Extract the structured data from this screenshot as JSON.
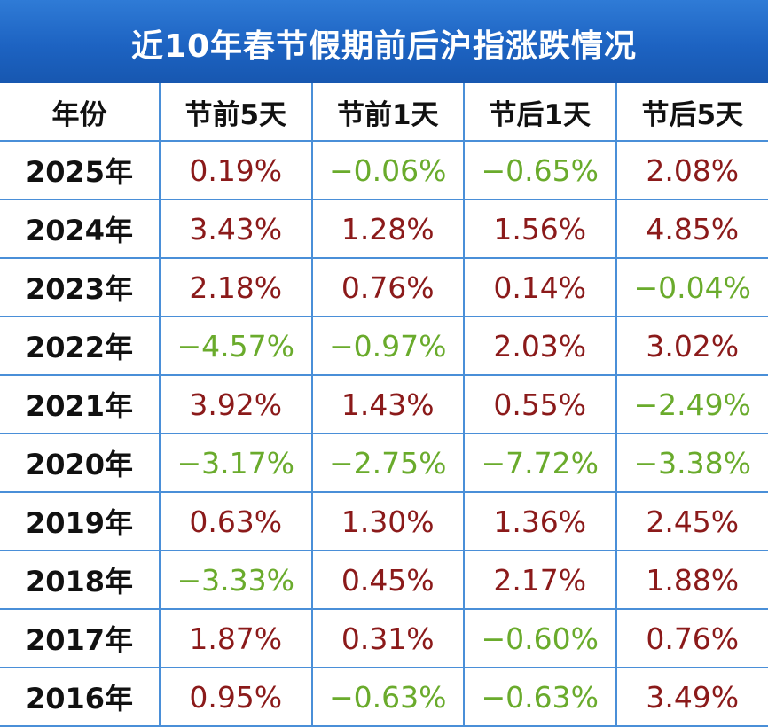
{
  "title": "近10年春节假期前后沪指涨跌情况",
  "colors": {
    "header_bg": "#1d63c2",
    "up": "#8b1a1a",
    "down": "#6aab2c",
    "grid": "#4a8fd8"
  },
  "headers": [
    "年份",
    "节前5天",
    "节前1天",
    "节后1天",
    "节后5天"
  ],
  "rows": [
    {
      "year": "2025年",
      "values": [
        "0.19%",
        "−0.06%",
        "−0.65%",
        "2.08%"
      ]
    },
    {
      "year": "2024年",
      "values": [
        "3.43%",
        "1.28%",
        "1.56%",
        "4.85%"
      ]
    },
    {
      "year": "2023年",
      "values": [
        "2.18%",
        "0.76%",
        "0.14%",
        "−0.04%"
      ]
    },
    {
      "year": "2022年",
      "values": [
        "−4.57%",
        "−0.97%",
        "2.03%",
        "3.02%"
      ]
    },
    {
      "year": "2021年",
      "values": [
        "3.92%",
        "1.43%",
        "0.55%",
        "−2.49%"
      ]
    },
    {
      "year": "2020年",
      "values": [
        "−3.17%",
        "−2.75%",
        "−7.72%",
        "−3.38%"
      ]
    },
    {
      "year": "2019年",
      "values": [
        "0.63%",
        "1.30%",
        "1.36%",
        "2.45%"
      ]
    },
    {
      "year": "2018年",
      "values": [
        "−3.33%",
        "0.45%",
        "2.17%",
        "1.88%"
      ]
    },
    {
      "year": "2017年",
      "values": [
        "1.87%",
        "0.31%",
        "−0.60%",
        "0.76%"
      ]
    },
    {
      "year": "2016年",
      "values": [
        "0.95%",
        "−0.63%",
        "−0.63%",
        "3.49%"
      ]
    }
  ]
}
